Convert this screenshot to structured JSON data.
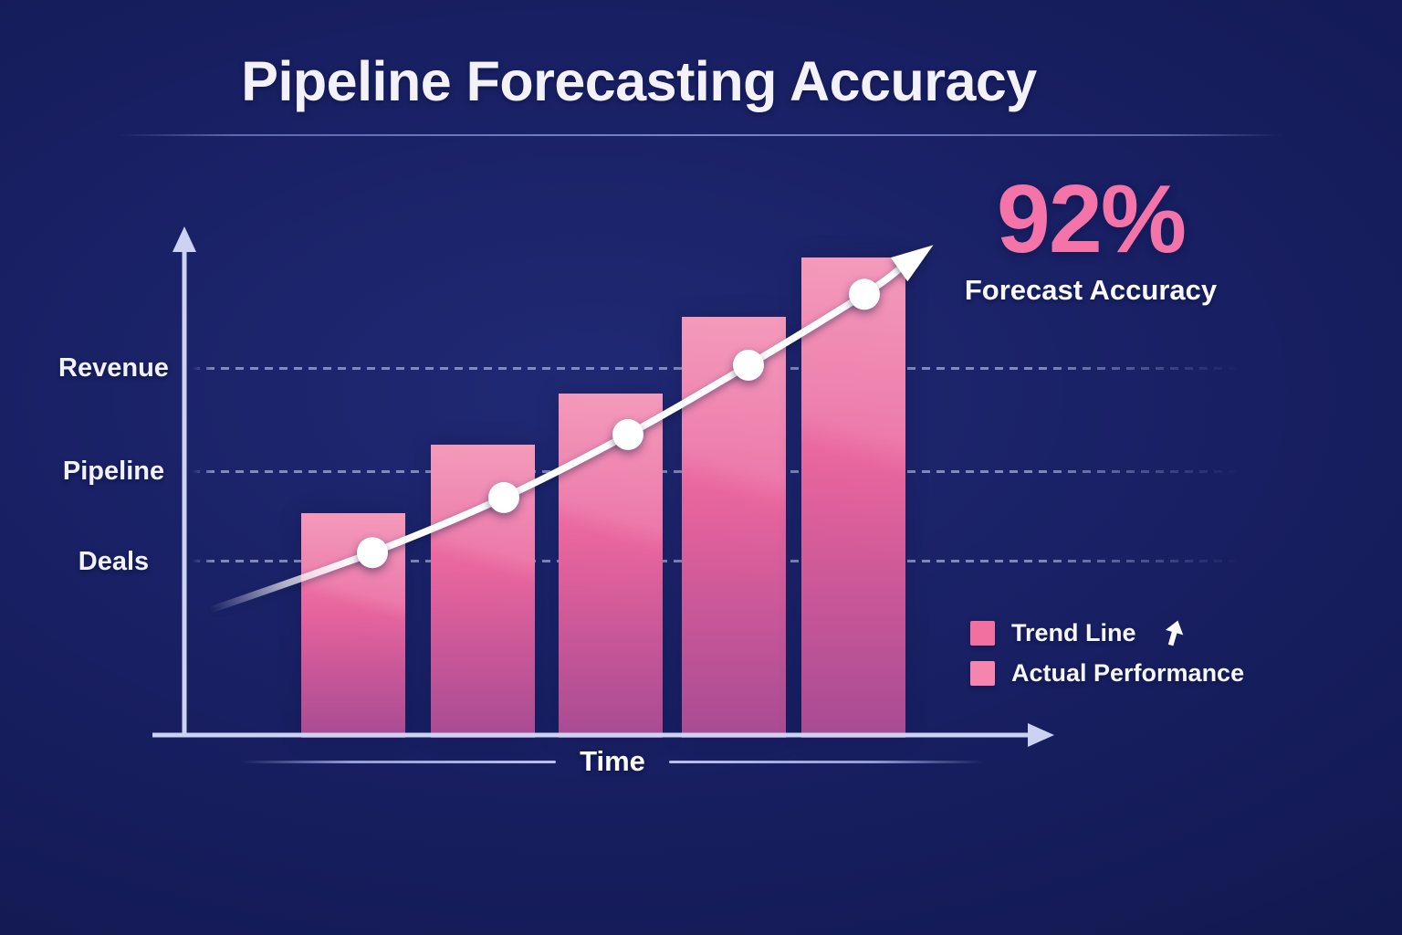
{
  "title": "Pipeline Forecasting Accuracy",
  "stat": {
    "value": "92%",
    "label": "Forecast Accuracy"
  },
  "x_axis_label": "Time",
  "y_axis_labels": [
    "Revenue",
    "Pipeline",
    "Deals"
  ],
  "legend": [
    {
      "label": "Trend Line",
      "swatch": "#f1709f",
      "icon": "up-arrow"
    },
    {
      "label": "Actual Performance",
      "swatch": "#f585ac"
    }
  ],
  "colors": {
    "background_navy": "#161d5c",
    "accent_pink": "#f474a9",
    "bar_gradient_top": "#f287ae",
    "bar_gradient_mid": "#e8639c",
    "bar_gradient_bottom": "#a84b93",
    "axis": "#ccd2f2",
    "gridline": "#c4cef5",
    "trend_line": "#ffffff",
    "text_white": "#f3f2fb"
  },
  "chart_data": {
    "type": "bar+line",
    "title": "Pipeline Forecasting Accuracy",
    "xlabel": "Time",
    "ylabel": "",
    "y_tick_labels": [
      "Revenue",
      "Pipeline",
      "Deals"
    ],
    "x_tick_labels": [],
    "grid": "dashed horizontal at each y tick",
    "legend_position": "lower right",
    "gridline_heights_frac": {
      "Revenue": 0.74,
      "Pipeline": 0.532,
      "Deals": 0.35
    },
    "bars": {
      "name": "Actual Performance",
      "heights_frac": [
        0.447,
        0.585,
        0.688,
        0.843,
        0.963
      ],
      "left_frac": [
        0.1365,
        0.2879,
        0.4371,
        0.581,
        0.7207
      ],
      "width_frac": 0.1215
    },
    "trend_line": {
      "name": "Trend Line",
      "points_frac": [
        {
          "x": 0.03,
          "h": 0.252
        },
        {
          "x": 0.2196,
          "h": 0.368
        },
        {
          "x": 0.3731,
          "h": 0.479
        },
        {
          "x": 0.5181,
          "h": 0.606
        },
        {
          "x": 0.6589,
          "h": 0.746
        },
        {
          "x": 0.7942,
          "h": 0.889
        },
        {
          "x": 0.8348,
          "h": 0.939
        }
      ],
      "dot_indices": [
        1,
        2,
        3,
        4,
        5
      ],
      "ends_with_arrow": true
    },
    "annotation": {
      "value": "92%",
      "label": "Forecast Accuracy"
    }
  }
}
